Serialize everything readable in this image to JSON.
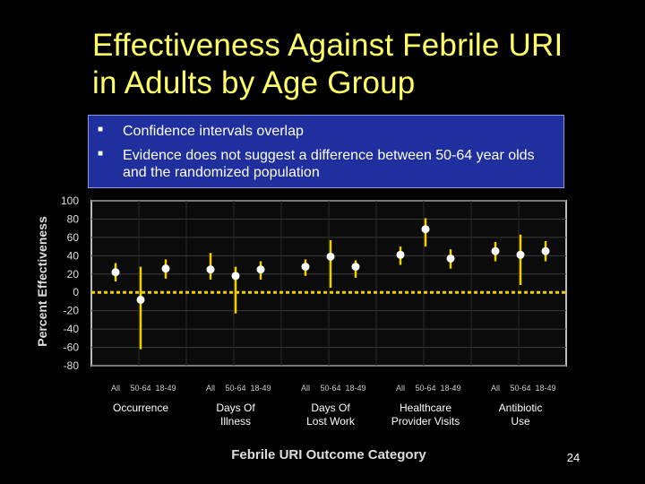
{
  "slide": {
    "title": "Effectiveness Against Febrile URI in Adults by Age Group",
    "page_number": "24",
    "bullets": [
      "Confidence intervals overlap",
      "Evidence does not suggest a difference between 50-64 year olds and the randomized population"
    ],
    "colors": {
      "title": "#ffff66",
      "bullet_box": "#1f2f9e",
      "ci_line": "#f2d000",
      "point": "#ffffff",
      "zero_line": "#f2d000",
      "plot_bg": "#0b0b0b"
    }
  },
  "chart_data": {
    "type": "scatter",
    "subtype": "point-estimate with confidence intervals",
    "xlabel": "Febrile URI Outcome Category",
    "ylabel": "Percent Effectiveness",
    "ylim": [
      -80,
      100
    ],
    "yticks": [
      100,
      80,
      60,
      40,
      20,
      0,
      -20,
      -40,
      -60,
      -80
    ],
    "grid": true,
    "groups": [
      {
        "label": "Occurrence",
        "points": [
          {
            "subgroup": "All",
            "value": 22,
            "ci": [
              12,
              32
            ]
          },
          {
            "subgroup": "50-64",
            "value": -8,
            "ci": [
              -62,
              28
            ]
          },
          {
            "subgroup": "18-49",
            "value": 26,
            "ci": [
              15,
              36
            ]
          }
        ]
      },
      {
        "label": "Days Of Illness",
        "points": [
          {
            "subgroup": "All",
            "value": 25,
            "ci": [
              14,
              43
            ]
          },
          {
            "subgroup": "50-64",
            "value": 18,
            "ci": [
              -23,
              28
            ]
          },
          {
            "subgroup": "18-49",
            "value": 25,
            "ci": [
              14,
              34
            ]
          }
        ]
      },
      {
        "label": "Days Of Lost Work",
        "points": [
          {
            "subgroup": "All",
            "value": 28,
            "ci": [
              18,
              36
            ]
          },
          {
            "subgroup": "50-64",
            "value": 39,
            "ci": [
              5,
              57
            ]
          },
          {
            "subgroup": "18-49",
            "value": 28,
            "ci": [
              16,
              35
            ]
          }
        ]
      },
      {
        "label": "Healthcare Provider Visits",
        "points": [
          {
            "subgroup": "All",
            "value": 41,
            "ci": [
              30,
              50
            ]
          },
          {
            "subgroup": "50-64",
            "value": 69,
            "ci": [
              50,
              81
            ]
          },
          {
            "subgroup": "18-49",
            "value": 37,
            "ci": [
              26,
              47
            ]
          }
        ]
      },
      {
        "label": "Antibiotic Use",
        "points": [
          {
            "subgroup": "All",
            "value": 45,
            "ci": [
              34,
              55
            ]
          },
          {
            "subgroup": "50-64",
            "value": 41,
            "ci": [
              8,
              63
            ]
          },
          {
            "subgroup": "18-49",
            "value": 45,
            "ci": [
              34,
              56
            ]
          }
        ]
      }
    ]
  }
}
